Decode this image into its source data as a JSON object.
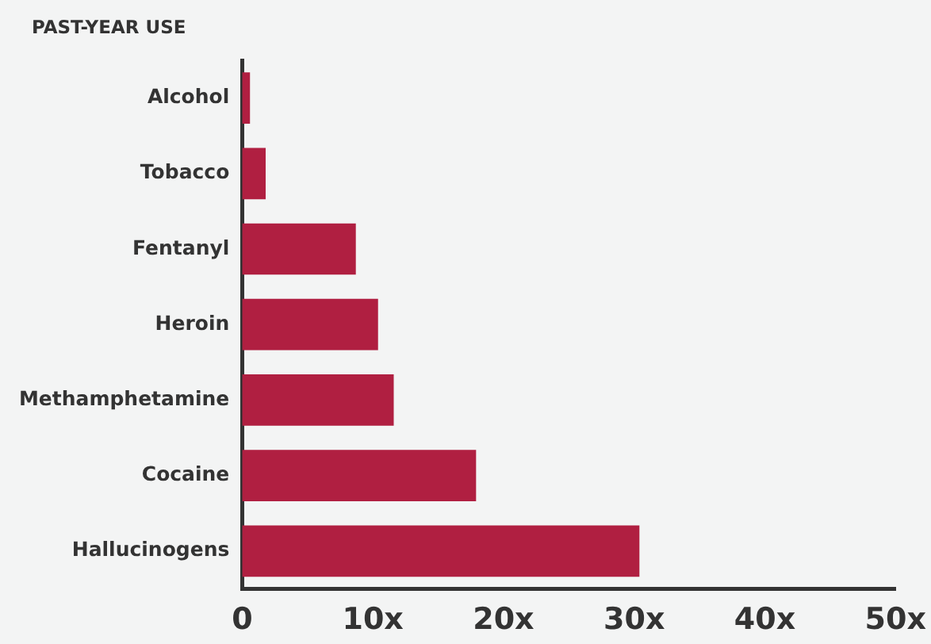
{
  "chart_data": {
    "type": "bar",
    "orientation": "horizontal",
    "title": "PAST-YEAR USE",
    "categories": [
      "Alcohol",
      "Tobacco",
      "Fentanyl",
      "Heroin",
      "Methamphetamine",
      "Cocaine",
      "Hallucinogens"
    ],
    "values": [
      0.6,
      1.8,
      8.7,
      10.4,
      11.6,
      17.9,
      30.4
    ],
    "color": "#b01f41",
    "xlim": [
      0,
      50
    ],
    "xticks": [
      0,
      {
        "value": 10,
        "label": "10x"
      },
      {
        "value": 20,
        "label": "20x"
      },
      {
        "value": 30,
        "label": "30x"
      },
      {
        "value": 40,
        "label": "40x"
      },
      {
        "value": 50,
        "label": "50x"
      }
    ],
    "grid": false,
    "legend": false
  }
}
